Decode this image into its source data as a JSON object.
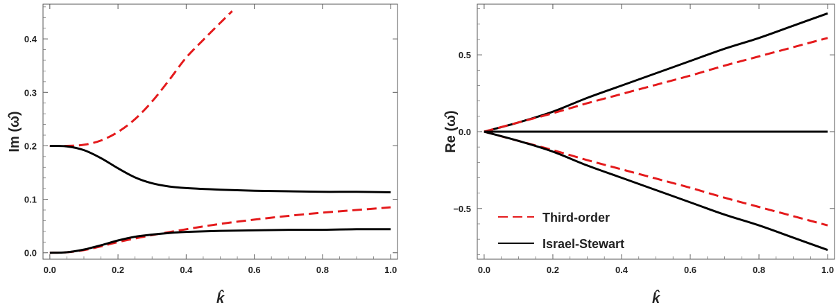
{
  "chart_data": [
    {
      "type": "line",
      "title": "",
      "xlabel": "k̂",
      "ylabel": "Im (ω̂)",
      "xlim": [
        -0.02,
        1.02
      ],
      "ylim": [
        -0.012,
        0.465
      ],
      "xticks": [
        0.0,
        0.2,
        0.4,
        0.6,
        0.8,
        1.0
      ],
      "xtick_labels": [
        "0.0",
        "0.2",
        "0.4",
        "0.6",
        "0.8",
        "1.0"
      ],
      "yticks": [
        0.0,
        0.1,
        0.2,
        0.3,
        0.4
      ],
      "ytick_labels": [
        "0.0",
        "0.1",
        "0.2",
        "0.3",
        "0.4"
      ],
      "grid": false,
      "series": [
        {
          "style": "dashed",
          "color": "#e41a1c",
          "x": [
            0.0,
            0.05,
            0.1,
            0.15,
            0.2,
            0.25,
            0.3,
            0.35,
            0.4,
            0.45,
            0.5,
            0.535
          ],
          "y": [
            0.2,
            0.2,
            0.202,
            0.21,
            0.226,
            0.25,
            0.283,
            0.323,
            0.365,
            0.398,
            0.43,
            0.452
          ]
        },
        {
          "style": "solid",
          "color": "#000000",
          "x": [
            0.0,
            0.05,
            0.1,
            0.15,
            0.2,
            0.25,
            0.3,
            0.35,
            0.4,
            0.5,
            0.6,
            0.7,
            0.8,
            0.9,
            1.0
          ],
          "y": [
            0.2,
            0.199,
            0.192,
            0.177,
            0.158,
            0.141,
            0.13,
            0.124,
            0.121,
            0.118,
            0.116,
            0.115,
            0.114,
            0.114,
            0.113
          ]
        },
        {
          "style": "dashed",
          "color": "#e41a1c",
          "x": [
            0.0,
            0.05,
            0.1,
            0.15,
            0.2,
            0.3,
            0.4,
            0.5,
            0.6,
            0.7,
            0.8,
            0.9,
            1.0
          ],
          "y": [
            0.0,
            0.001,
            0.005,
            0.012,
            0.02,
            0.033,
            0.044,
            0.054,
            0.062,
            0.069,
            0.075,
            0.08,
            0.085
          ]
        },
        {
          "style": "solid",
          "color": "#000000",
          "x": [
            0.0,
            0.05,
            0.1,
            0.15,
            0.2,
            0.25,
            0.3,
            0.35,
            0.4,
            0.5,
            0.6,
            0.7,
            0.8,
            0.9,
            1.0
          ],
          "y": [
            0.0,
            0.001,
            0.006,
            0.014,
            0.023,
            0.03,
            0.034,
            0.037,
            0.039,
            0.041,
            0.042,
            0.043,
            0.043,
            0.044,
            0.044
          ]
        }
      ]
    },
    {
      "type": "line",
      "title": "",
      "xlabel": "k̂",
      "ylabel": "Re (ω̂)",
      "xlim": [
        -0.02,
        1.02
      ],
      "ylim": [
        -0.83,
        0.83
      ],
      "xticks": [
        0.0,
        0.2,
        0.4,
        0.6,
        0.8,
        1.0
      ],
      "xtick_labels": [
        "0.0",
        "0.2",
        "0.4",
        "0.6",
        "0.8",
        "1.0"
      ],
      "yticks": [
        -0.5,
        0.0,
        0.5
      ],
      "ytick_labels": [
        "−0.5",
        "0.0",
        "0.5"
      ],
      "grid": false,
      "legend": {
        "position": "bottom-left",
        "entries": [
          {
            "label": "Third-order",
            "style": "dashed",
            "color": "#e41a1c"
          },
          {
            "label": "Israel-Stewart",
            "style": "solid",
            "color": "#000000"
          }
        ]
      },
      "series": [
        {
          "style": "solid",
          "color": "#000000",
          "x": [
            0.0,
            0.1,
            0.2,
            0.3,
            0.4,
            0.5,
            0.6,
            0.7,
            0.8,
            0.9,
            1.0
          ],
          "y": [
            0.0,
            0.06,
            0.13,
            0.22,
            0.3,
            0.38,
            0.46,
            0.54,
            0.61,
            0.69,
            0.77
          ]
        },
        {
          "style": "dashed",
          "color": "#e41a1c",
          "x": [
            0.0,
            0.1,
            0.2,
            0.3,
            0.4,
            0.5,
            0.6,
            0.7,
            0.8,
            0.9,
            1.0
          ],
          "y": [
            0.0,
            0.06,
            0.12,
            0.185,
            0.245,
            0.305,
            0.365,
            0.43,
            0.49,
            0.55,
            0.61
          ]
        },
        {
          "style": "solid",
          "color": "#000000",
          "x": [
            0.0,
            1.0
          ],
          "y": [
            0.0,
            0.0
          ]
        },
        {
          "style": "dashed",
          "color": "#e41a1c",
          "x": [
            0.0,
            0.1,
            0.2,
            0.3,
            0.4,
            0.5,
            0.6,
            0.7,
            0.8,
            0.9,
            1.0
          ],
          "y": [
            0.0,
            -0.06,
            -0.12,
            -0.185,
            -0.245,
            -0.305,
            -0.365,
            -0.43,
            -0.49,
            -0.55,
            -0.61
          ]
        },
        {
          "style": "solid",
          "color": "#000000",
          "x": [
            0.0,
            0.1,
            0.2,
            0.3,
            0.4,
            0.5,
            0.6,
            0.7,
            0.8,
            0.9,
            1.0
          ],
          "y": [
            0.0,
            -0.06,
            -0.13,
            -0.22,
            -0.3,
            -0.38,
            -0.46,
            -0.54,
            -0.61,
            -0.69,
            -0.77
          ]
        }
      ]
    }
  ]
}
